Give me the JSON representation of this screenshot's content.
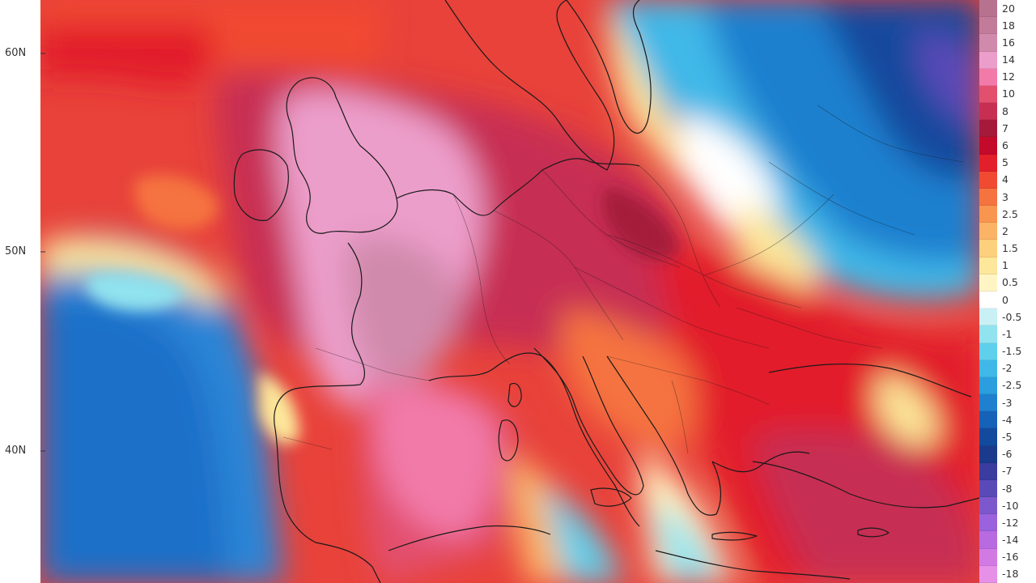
{
  "latitude_labels": [
    "60N",
    "50N",
    "40N"
  ],
  "legend": {
    "labels": [
      "20",
      "18",
      "16",
      "14",
      "12",
      "10",
      "8",
      "7",
      "6",
      "5",
      "4",
      "3",
      "2.5",
      "2",
      "1.5",
      "1",
      "0.5",
      "0",
      "-0.5",
      "-1",
      "-1.5",
      "-2",
      "-2.5",
      "-3",
      "-4",
      "-5",
      "-6",
      "-7",
      "-8",
      "-10",
      "-12",
      "-14",
      "-16",
      "-18"
    ],
    "colors": [
      "#b77290",
      "#c27c9a",
      "#d08aab",
      "#ec9ecb",
      "#f27aa9",
      "#e2506e",
      "#c72f52",
      "#a51a3a",
      "#c40a2a",
      "#e21f2a",
      "#f04a32",
      "#f5733f",
      "#f8954f",
      "#fbb366",
      "#fcd07c",
      "#fde79a",
      "#fff5c4",
      "#ffffff",
      "#c8f0f5",
      "#90e3ef",
      "#5fd0ec",
      "#3fb8e8",
      "#2a9edf",
      "#1f80cf",
      "#1662b8",
      "#134a9e",
      "#1a3a8c",
      "#3a3ca0",
      "#5a4ab8",
      "#7c58cc",
      "#9a62dc",
      "#b86ae0",
      "#d27ae4",
      "#e690e8"
    ]
  },
  "colors": {
    "water_warm": "#e8423a",
    "water_cold": "#2a84d6",
    "borders": "#1a1a1a"
  }
}
